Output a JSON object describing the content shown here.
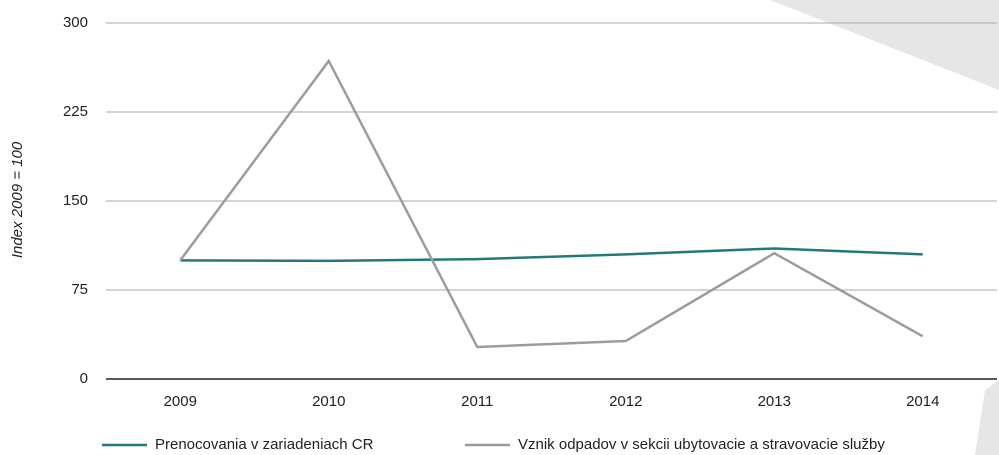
{
  "chart_data": {
    "type": "line",
    "ylabel": "Index 2009 = 100",
    "categories": [
      "2009",
      "2010",
      "2011",
      "2012",
      "2013",
      "2014"
    ],
    "series": [
      {
        "name": "Prenocovania v zariadeniach CR",
        "color": "#22797a",
        "values": [
          100,
          99.5,
          101,
          105,
          110,
          105
        ]
      },
      {
        "name": "Vznik odpadov v sekcii ubytovacie a stravovacie služby",
        "color": "#9b9ca1",
        "values": [
          100,
          268,
          27,
          32,
          106,
          36
        ]
      }
    ],
    "ylim": [
      0,
      300
    ],
    "yticks": [
      0,
      75,
      150,
      225,
      300
    ],
    "grid": true
  }
}
